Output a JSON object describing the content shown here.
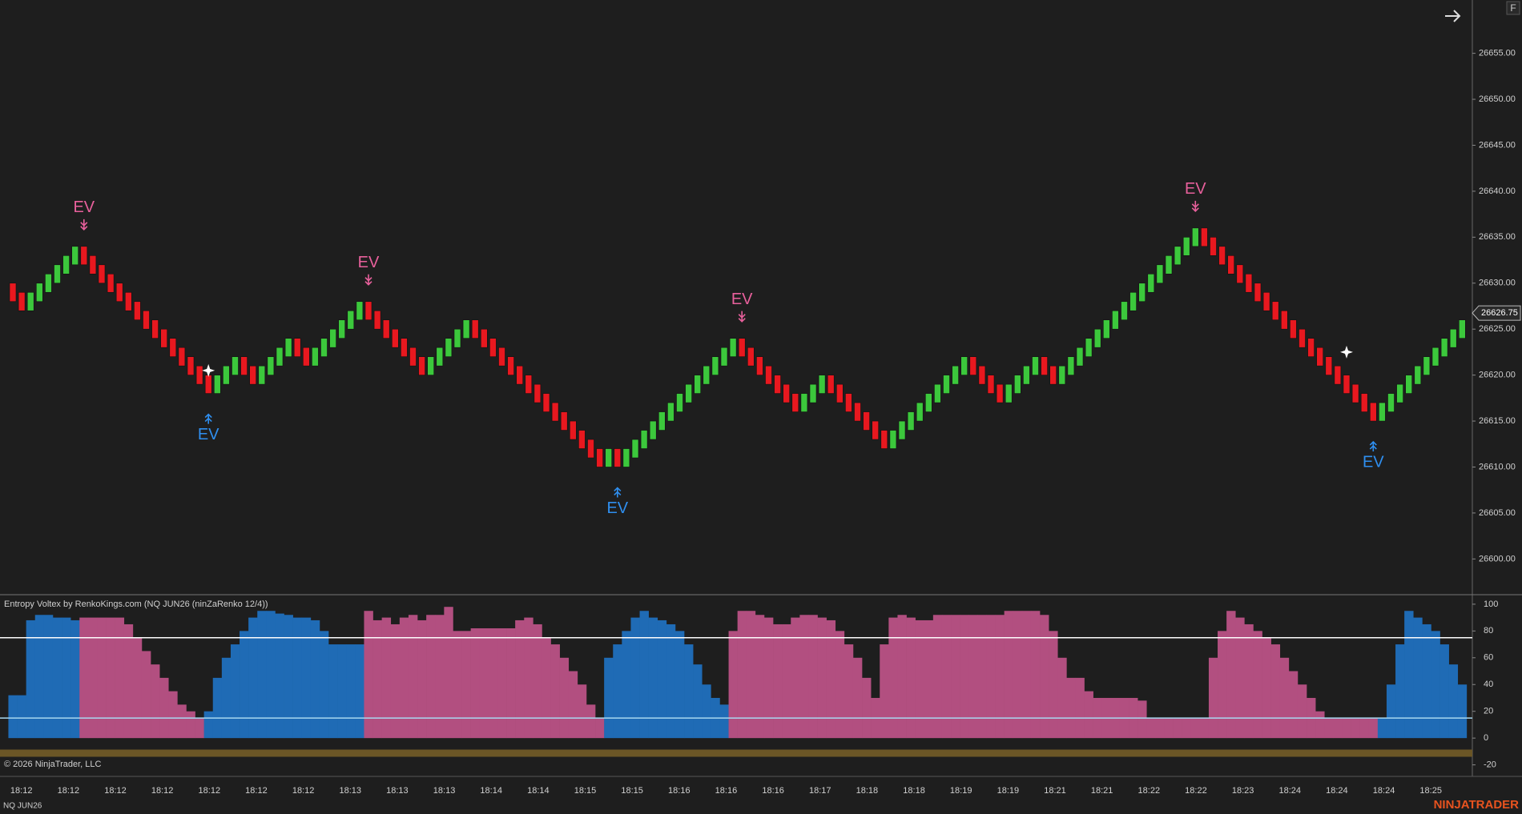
{
  "chart_data": [
    {
      "type": "candlestick",
      "symbol": "NQ JUN26",
      "up_color": "#3cc83c",
      "down_color": "#e8181f",
      "open": [
        26630,
        26629,
        26627,
        26628,
        26629,
        26630,
        26631,
        26632,
        26634,
        26633,
        26632,
        26631,
        26630,
        26629,
        26628,
        26627,
        26626,
        26625,
        26624,
        26623,
        26622,
        26621,
        26620,
        26618,
        26619,
        26620,
        26622,
        26621,
        26619,
        26620,
        26621,
        26622,
        26624,
        26623,
        26621,
        26622,
        26623,
        26624,
        26625,
        26626,
        26628,
        26627,
        26626,
        26625,
        26624,
        26623,
        26622,
        26620,
        26621,
        26622,
        26623,
        26624,
        26626,
        26625,
        26624,
        26623,
        26622,
        26621,
        26620,
        26619,
        26618,
        26617,
        26616,
        26615,
        26614,
        26613,
        26612,
        26610,
        26612,
        26610,
        26611,
        26612,
        26613,
        26614,
        26615,
        26616,
        26617,
        26618,
        26619,
        26620,
        26621,
        26622,
        26624,
        26623,
        26622,
        26621,
        26620,
        26619,
        26618,
        26616,
        26617,
        26618,
        26620,
        26619,
        26618,
        26617,
        26616,
        26615,
        26614,
        26612,
        26613,
        26614,
        26615,
        26616,
        26617,
        26618,
        26619,
        26620,
        26622,
        26621,
        26620,
        26619,
        26617,
        26618,
        26619,
        26620,
        26622,
        26621,
        26619,
        26620,
        26621,
        26622,
        26623,
        26624,
        26625,
        26626,
        26627,
        26628,
        26629,
        26630,
        26631,
        26632,
        26633,
        26634,
        26636,
        26635,
        26634,
        26633,
        26632,
        26631,
        26630,
        26629,
        26628,
        26627,
        26626,
        26625,
        26624,
        26623,
        26622,
        26621,
        26620,
        26619,
        26618,
        26617,
        26615,
        26616,
        26617,
        26618,
        26619,
        26620,
        26621,
        26622,
        26623,
        26624
      ],
      "close": [
        26628,
        26627,
        26629,
        26630,
        26631,
        26632,
        26633,
        26634,
        26632,
        26631,
        26630,
        26629,
        26628,
        26627,
        26626,
        26625,
        26624,
        26623,
        26622,
        26621,
        26620,
        26619,
        26618,
        26620,
        26621,
        26622,
        26620,
        26619,
        26621,
        26622,
        26623,
        26624,
        26622,
        26621,
        26623,
        26624,
        26625,
        26626,
        26627,
        26628,
        26626,
        26625,
        26624,
        26623,
        26622,
        26621,
        26620,
        26622,
        26623,
        26624,
        26625,
        26626,
        26624,
        26623,
        26622,
        26621,
        26620,
        26619,
        26618,
        26617,
        26616,
        26615,
        26614,
        26613,
        26612,
        26611,
        26610,
        26612,
        26610,
        26612,
        26613,
        26614,
        26615,
        26616,
        26617,
        26618,
        26619,
        26620,
        26621,
        26622,
        26623,
        26624,
        26622,
        26621,
        26620,
        26619,
        26618,
        26617,
        26616,
        26618,
        26619,
        26620,
        26618,
        26617,
        26616,
        26615,
        26614,
        26613,
        26612,
        26614,
        26615,
        26616,
        26617,
        26618,
        26619,
        26620,
        26621,
        26622,
        26620,
        26619,
        26618,
        26617,
        26619,
        26620,
        26621,
        26622,
        26620,
        26619,
        26621,
        26622,
        26623,
        26624,
        26625,
        26626,
        26627,
        26628,
        26629,
        26630,
        26631,
        26632,
        26633,
        26634,
        26635,
        26636,
        26634,
        26633,
        26632,
        26631,
        26630,
        26629,
        26628,
        26627,
        26626,
        26625,
        26624,
        26623,
        26622,
        26621,
        26620,
        26619,
        26618,
        26617,
        26616,
        26615,
        26617,
        26618,
        26619,
        26620,
        26621,
        26622,
        26623,
        26624,
        26625,
        26626
      ],
      "ylim": [
        26596.2,
        26660.8
      ],
      "yticks": [
        {
          "value": 26600,
          "label": "26600.00"
        },
        {
          "value": 26605,
          "label": "26605.00"
        },
        {
          "value": 26610,
          "label": "26610.00"
        },
        {
          "value": 26615,
          "label": "26615.00"
        },
        {
          "value": 26620,
          "label": "26620.00"
        },
        {
          "value": 26625,
          "label": "26625.00"
        },
        {
          "value": 26630,
          "label": "26630.00"
        },
        {
          "value": 26635,
          "label": "26635.00"
        },
        {
          "value": 26640,
          "label": "26640.00"
        },
        {
          "value": 26645,
          "label": "26645.00"
        },
        {
          "value": 26650,
          "label": "26650.00"
        },
        {
          "value": 26655,
          "label": "26655.00"
        }
      ],
      "last_price": {
        "value": 26626.75,
        "label": "26626.75"
      },
      "annotations": [
        {
          "text": "EV",
          "bar": 8,
          "direction": "down",
          "color": "#e8609c"
        },
        {
          "text": "EV",
          "bar": 40,
          "direction": "down",
          "color": "#e8609c"
        },
        {
          "text": "EV",
          "bar": 82,
          "direction": "down",
          "color": "#e8609c"
        },
        {
          "text": "EV",
          "bar": 133,
          "direction": "down",
          "color": "#e8609c"
        },
        {
          "text": "EV",
          "bar": 22,
          "direction": "up",
          "color": "#2f8ff0"
        },
        {
          "text": "EV",
          "bar": 68,
          "direction": "up",
          "color": "#2f8ff0"
        },
        {
          "text": "EV",
          "bar": 153,
          "direction": "up",
          "color": "#2f8ff0"
        }
      ],
      "markers": [
        {
          "bar": 22,
          "value": 26620.5
        },
        {
          "bar": 150,
          "value": 26622.5
        }
      ],
      "time_labels": [
        "18:12",
        "18:12",
        "18:12",
        "18:12",
        "18:12",
        "18:12",
        "18:12",
        "18:13",
        "18:13",
        "18:13",
        "18:14",
        "18:14",
        "18:15",
        "18:15",
        "18:16",
        "18:16",
        "18:16",
        "18:17",
        "18:18",
        "18:18",
        "18:19",
        "18:19",
        "18:21",
        "18:21",
        "18:22",
        "18:22",
        "18:23",
        "18:24",
        "18:24",
        "18:24",
        "18:25"
      ]
    },
    {
      "type": "histogram",
      "title": "Entropy Voltex by RenkoKings.com (NQ JUN26 (ninZaRenko 12/4))",
      "values": [
        32,
        32,
        88,
        92,
        92,
        90,
        90,
        88,
        90,
        90,
        90,
        90,
        90,
        85,
        75,
        65,
        55,
        45,
        35,
        25,
        20,
        15,
        20,
        45,
        60,
        70,
        80,
        90,
        95,
        95,
        93,
        92,
        90,
        90,
        88,
        80,
        70,
        70,
        70,
        70,
        95,
        88,
        90,
        85,
        90,
        92,
        88,
        92,
        92,
        98,
        80,
        80,
        82,
        82,
        82,
        82,
        82,
        88,
        90,
        85,
        75,
        70,
        60,
        50,
        40,
        25,
        15,
        60,
        70,
        80,
        90,
        95,
        90,
        88,
        85,
        80,
        70,
        55,
        40,
        30,
        25,
        80,
        95,
        95,
        92,
        90,
        85,
        85,
        90,
        92,
        92,
        90,
        88,
        80,
        70,
        60,
        45,
        30,
        70,
        90,
        92,
        90,
        88,
        88,
        92,
        92,
        92,
        92,
        92,
        92,
        92,
        92,
        95,
        95,
        95,
        95,
        92,
        80,
        60,
        45,
        45,
        35,
        30,
        30,
        30,
        30,
        30,
        28,
        15,
        15,
        15,
        15,
        15,
        15,
        15,
        60,
        80,
        95,
        90,
        85,
        80,
        75,
        70,
        60,
        50,
        40,
        30,
        20,
        15,
        15,
        15,
        15,
        15,
        15,
        15,
        40,
        70,
        95,
        90,
        85,
        80,
        70,
        55,
        40
      ],
      "bar_colors": [
        "b",
        "b",
        "b",
        "b",
        "b",
        "b",
        "b",
        "b",
        "p",
        "p",
        "p",
        "p",
        "p",
        "p",
        "p",
        "p",
        "p",
        "p",
        "p",
        "p",
        "p",
        "p",
        "b",
        "b",
        "b",
        "b",
        "b",
        "b",
        "b",
        "b",
        "b",
        "b",
        "b",
        "b",
        "b",
        "b",
        "b",
        "b",
        "b",
        "b",
        "p",
        "p",
        "p",
        "p",
        "p",
        "p",
        "p",
        "p",
        "p",
        "p",
        "p",
        "p",
        "p",
        "p",
        "p",
        "p",
        "p",
        "p",
        "p",
        "p",
        "p",
        "p",
        "p",
        "p",
        "p",
        "p",
        "p",
        "b",
        "b",
        "b",
        "b",
        "b",
        "b",
        "b",
        "b",
        "b",
        "b",
        "b",
        "b",
        "b",
        "b",
        "p",
        "p",
        "p",
        "p",
        "p",
        "p",
        "p",
        "p",
        "p",
        "p",
        "p",
        "p",
        "p",
        "p",
        "p",
        "p",
        "p",
        "p",
        "p",
        "p",
        "p",
        "p",
        "p",
        "p",
        "p",
        "p",
        "p",
        "p",
        "p",
        "p",
        "p",
        "p",
        "p",
        "p",
        "p",
        "p",
        "p",
        "p",
        "p",
        "p",
        "p",
        "p",
        "p",
        "p",
        "p",
        "p",
        "p",
        "p",
        "p",
        "p",
        "p",
        "p",
        "p",
        "p",
        "p",
        "p",
        "p",
        "p",
        "p",
        "p",
        "p",
        "p",
        "p",
        "p",
        "p",
        "p",
        "p",
        "p",
        "p",
        "p",
        "p",
        "p",
        "p",
        "b",
        "b",
        "b",
        "b",
        "b",
        "b",
        "b",
        "b",
        "b",
        "b"
      ],
      "palette": {
        "b": "#1f6bb5",
        "p": "#b24f80"
      },
      "ylim": [
        -28,
        106.5
      ],
      "yticks": [
        100,
        80,
        60,
        40,
        20,
        0,
        -20
      ],
      "levels": [
        {
          "value": 75,
          "color": "#ffffff"
        },
        {
          "value": 15,
          "color": "#a8d8f0"
        }
      ]
    }
  ],
  "footer": {
    "copyright": "© 2026 NinjaTrader, LLC",
    "brand": "NINJATRADER"
  },
  "flag": "F"
}
